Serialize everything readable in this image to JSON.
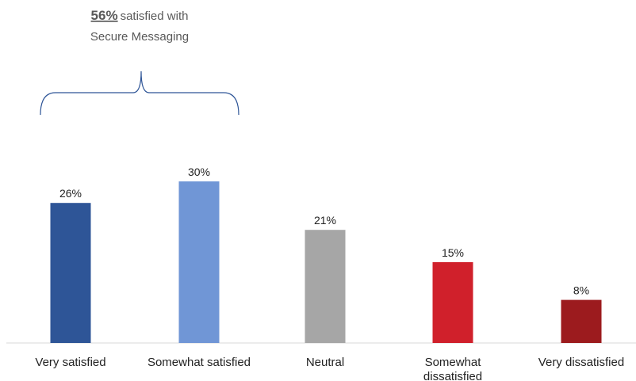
{
  "callout": {
    "percent": "56%",
    "text_line1": "satisfied with",
    "text_line2": "Secure Messaging"
  },
  "chart_data": {
    "type": "bar",
    "categories": [
      "Very satisfied",
      "Somewhat satisfied",
      "Neutral",
      "Somewhat dissatisfied",
      "Very dissatisfied"
    ],
    "values": [
      26,
      30,
      21,
      15,
      8
    ],
    "value_labels": [
      "26%",
      "30%",
      "21%",
      "15%",
      "8%"
    ],
    "colors": [
      "#2e5597",
      "#7096d6",
      "#a6a6a6",
      "#d0202b",
      "#9c1b1e"
    ],
    "ylim": [
      0,
      100
    ],
    "grid": false,
    "legend": "none",
    "title": "",
    "xlabel": "",
    "ylabel": ""
  }
}
